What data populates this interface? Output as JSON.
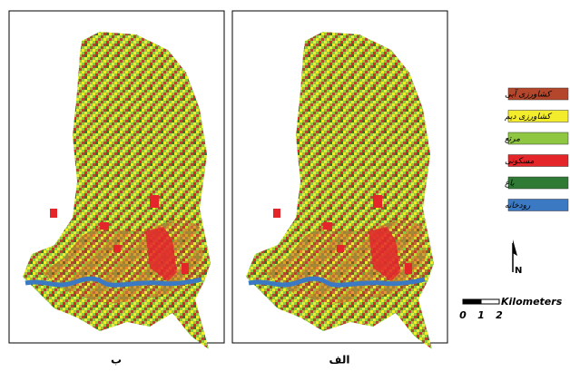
{
  "panels": [
    {
      "label": "ب"
    },
    {
      "label": "الف"
    }
  ],
  "legend": {
    "items": [
      {
        "label": "کشاورزی آبی",
        "color": "#b4472b"
      },
      {
        "label": "کشاورزی دیم",
        "color": "#f3ec2c"
      },
      {
        "label": "مرتع",
        "color": "#8fc742"
      },
      {
        "label": "مسکونی",
        "color": "#e4262b"
      },
      {
        "label": "باغ",
        "color": "#2f7a34"
      },
      {
        "label": "رودخانه",
        "color": "#3b79c3"
      }
    ]
  },
  "north": "N",
  "scale_bar": {
    "unit": "Kilometers",
    "ticks": [
      "0",
      "1",
      "2"
    ]
  }
}
